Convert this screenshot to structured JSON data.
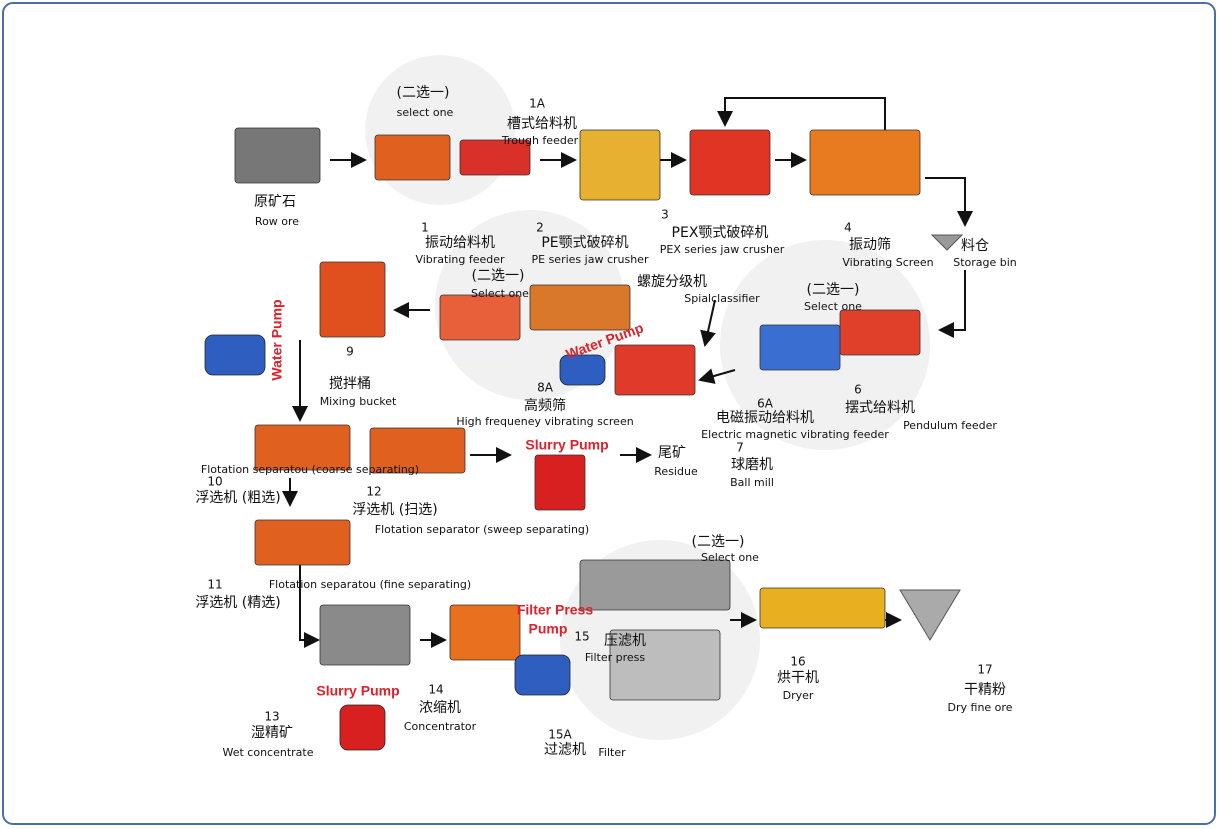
{
  "nodes": [
    {
      "zh": "原矿石",
      "en": "Row ore"
    },
    {
      "number": "1A",
      "zh": "槽式给料机",
      "en": "Trough feeder"
    },
    {
      "number": "1",
      "zh": "振动给料机",
      "en": "Vibrating feeder"
    },
    {
      "number": "2",
      "zh": "PE颚式破碎机",
      "en": "PE series jaw crusher"
    },
    {
      "number": "3",
      "zh": "PEX颚式破碎机",
      "en": "PEX series jaw crusher"
    },
    {
      "number": "4",
      "zh": "振动筛",
      "en": "Vibrating Screen"
    },
    {
      "zh": "料仓",
      "en": "Storage bin"
    },
    {
      "number": "6",
      "zh": "摆式给料机",
      "en": "Pendulum feeder"
    },
    {
      "number": "6A",
      "zh": "电磁振动给料机",
      "en": "Electric magnetic vibrating feeder"
    },
    {
      "zh": "螺旋分级机",
      "en": "Spialclassifier"
    },
    {
      "number": "7",
      "zh": "球磨机",
      "en": "Ball mill"
    },
    {
      "number": "8A",
      "zh": "高频筛",
      "en": "High frequeney vibrating screen"
    },
    {
      "number": "9",
      "zh": "搅拌桶",
      "en": "Mixing bucket"
    },
    {
      "number": "10",
      "zh": "浮选机 (粗选)",
      "en": "Flotation separatou (coarse separating)"
    },
    {
      "number": "12",
      "zh": "浮选机 (扫选)",
      "en": "Flotation separator (sweep separating)"
    },
    {
      "zh": "尾矿",
      "en": "Residue"
    },
    {
      "number": "11",
      "zh": "浮选机 (精选)",
      "en": "Flotation separatou (fine separating)"
    },
    {
      "number": "13",
      "zh": "湿精矿",
      "en": "Wet concentrate"
    },
    {
      "number": "14",
      "zh": "浓缩机",
      "en": "Concentrator"
    },
    {
      "number": "15",
      "zh": "压滤机",
      "en": "Filter press"
    },
    {
      "number": "15A",
      "zh": "过滤机",
      "en": "Filter"
    },
    {
      "number": "16",
      "zh": "烘干机",
      "en": "Dryer"
    },
    {
      "number": "17",
      "zh": "干精粉",
      "en": "Dry fine ore"
    }
  ],
  "groups": [
    {
      "zh": "(二选一)",
      "en": "select one"
    },
    {
      "zh": "(二选一)",
      "en": "Select one"
    },
    {
      "zh": "(二选一)",
      "en": "Select one"
    },
    {
      "zh": "(二选一)",
      "en": "Select one"
    }
  ],
  "pumps": [
    "Water Pump",
    "Water Pump",
    "Slurry Pump",
    "Filter Press",
    "Pump",
    "Slurry Pump"
  ]
}
